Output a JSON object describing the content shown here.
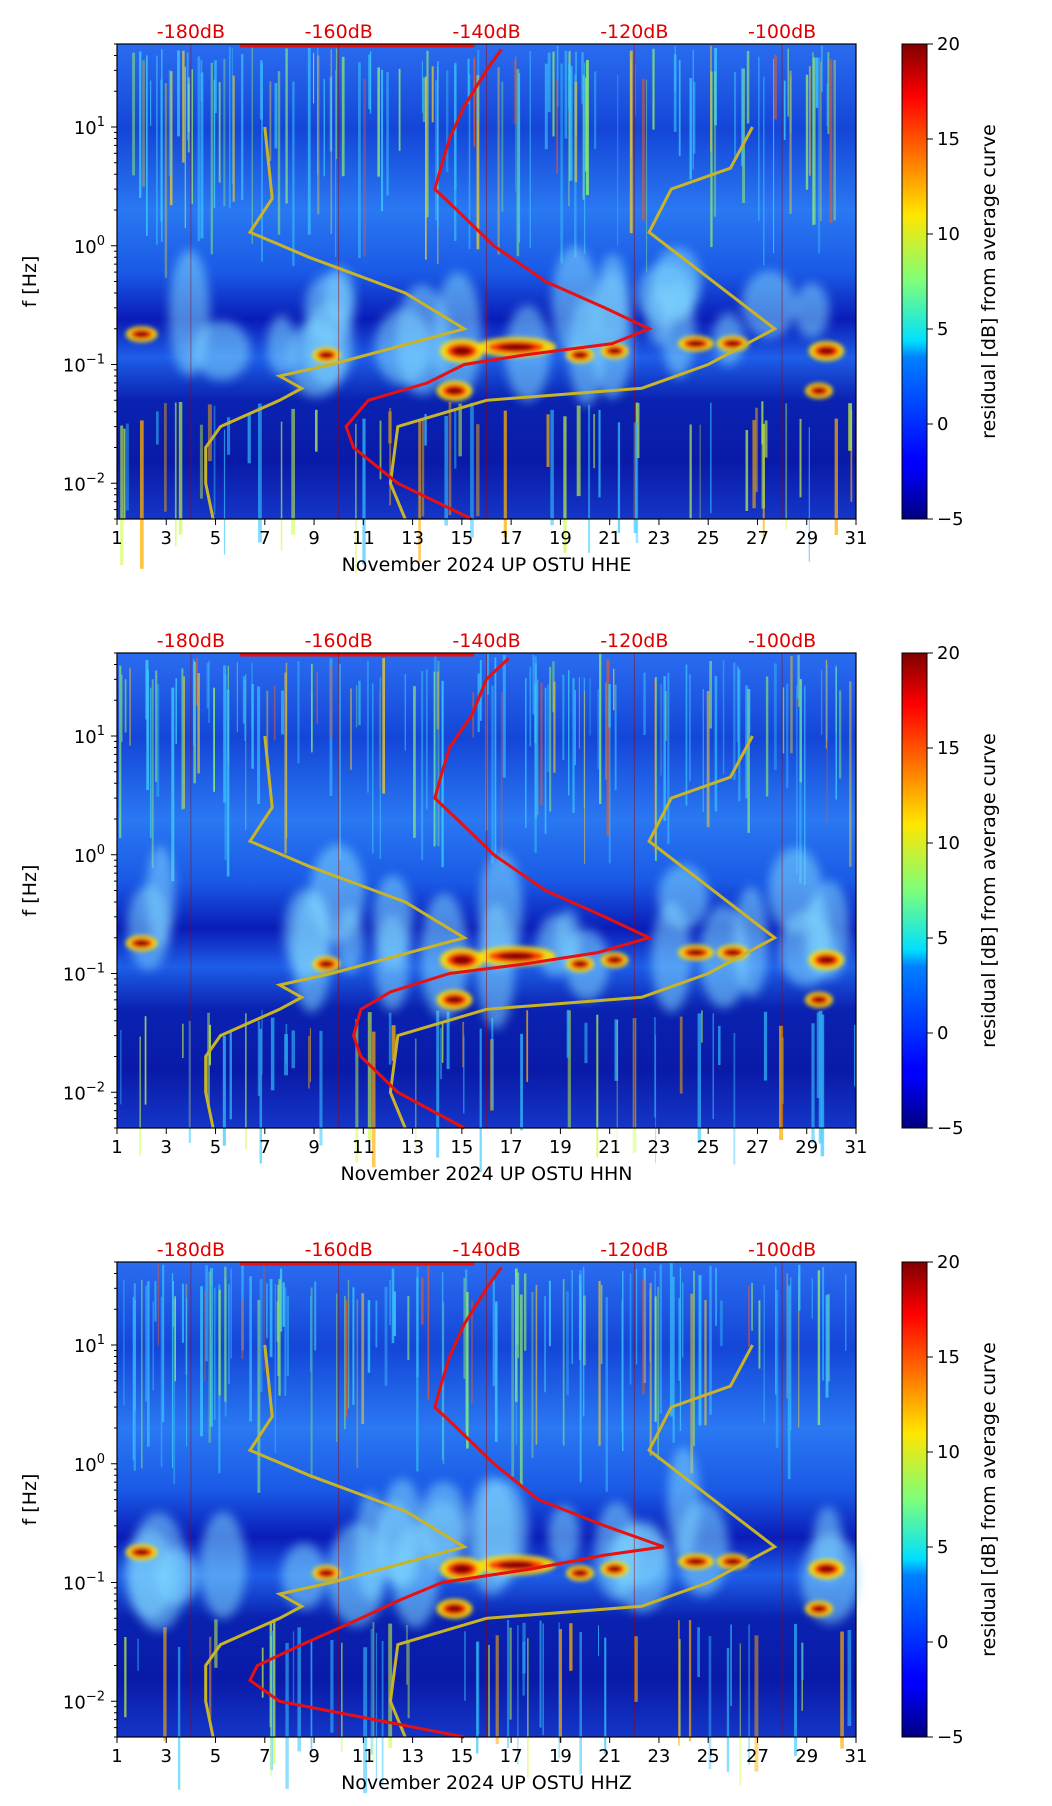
{
  "figure": {
    "colorbar": {
      "label": "residual [dB] from average curve",
      "ticks": [
        -5,
        0,
        5,
        10,
        15,
        20
      ],
      "range": [
        -5,
        20
      ],
      "colormap": "jet"
    },
    "shared": {
      "y_label": "f [Hz]",
      "y_ticks": [
        {
          "value": 0.01,
          "base": "10",
          "exp": "−2"
        },
        {
          "value": 0.1,
          "base": "10",
          "exp": "−1"
        },
        {
          "value": 1,
          "base": "10",
          "exp": "0"
        },
        {
          "value": 10,
          "base": "10",
          "exp": "1"
        }
      ],
      "y_range": [
        0.005,
        50
      ],
      "x_ticks": [
        "1",
        "3",
        "5",
        "7",
        "9",
        "11",
        "13",
        "15",
        "17",
        "19",
        "21",
        "23",
        "25",
        "27",
        "29",
        "31"
      ],
      "x_range": [
        1,
        31
      ],
      "db_labels": [
        "-180dB",
        "-160dB",
        "-140dB",
        "-120dB",
        "-100dB"
      ],
      "db_label_days": [
        4,
        10,
        16,
        22,
        28
      ],
      "colors": {
        "red_curve": "#e81010",
        "model_curve": "#c8b428",
        "db_label": "#e00000"
      }
    }
  },
  "chart_data": [
    {
      "type": "heatmap",
      "title": "",
      "xlabel": "November 2024 UP OSTU  HHE",
      "ylabel": "f [Hz]",
      "component": "HHE",
      "average_curve_db": [
        [
          0.005,
          -142
        ],
        [
          0.01,
          -152
        ],
        [
          0.02,
          -158
        ],
        [
          0.03,
          -159
        ],
        [
          0.05,
          -156
        ],
        [
          0.07,
          -148
        ],
        [
          0.1,
          -143
        ],
        [
          0.12,
          -135
        ],
        [
          0.15,
          -123
        ],
        [
          0.2,
          -118
        ],
        [
          0.3,
          -124
        ],
        [
          0.5,
          -132
        ],
        [
          1,
          -139
        ],
        [
          2,
          -144
        ],
        [
          3,
          -147
        ],
        [
          5,
          -146
        ],
        [
          8,
          -145
        ],
        [
          15,
          -143
        ],
        [
          30,
          -140
        ],
        [
          45,
          -138
        ]
      ]
    },
    {
      "type": "heatmap",
      "title": "",
      "xlabel": "November 2024 UP OSTU  HHN",
      "ylabel": "f [Hz]",
      "component": "HHN",
      "average_curve_db": [
        [
          0.005,
          -143
        ],
        [
          0.01,
          -152
        ],
        [
          0.02,
          -157
        ],
        [
          0.03,
          -158
        ],
        [
          0.05,
          -157
        ],
        [
          0.07,
          -153
        ],
        [
          0.1,
          -145
        ],
        [
          0.12,
          -135
        ],
        [
          0.15,
          -125
        ],
        [
          0.2,
          -118
        ],
        [
          0.3,
          -124
        ],
        [
          0.5,
          -132
        ],
        [
          1,
          -139
        ],
        [
          2,
          -144
        ],
        [
          3,
          -147
        ],
        [
          5,
          -146
        ],
        [
          8,
          -145
        ],
        [
          15,
          -142
        ],
        [
          30,
          -140
        ],
        [
          45,
          -137
        ]
      ]
    },
    {
      "type": "heatmap",
      "title": "",
      "xlabel": "November 2024 UP OSTU  HHZ",
      "ylabel": "f [Hz]",
      "component": "HHZ",
      "average_curve_db": [
        [
          0.005,
          -143
        ],
        [
          0.01,
          -168
        ],
        [
          0.015,
          -172
        ],
        [
          0.02,
          -171
        ],
        [
          0.03,
          -165
        ],
        [
          0.05,
          -157
        ],
        [
          0.07,
          -152
        ],
        [
          0.1,
          -146
        ],
        [
          0.13,
          -134
        ],
        [
          0.17,
          -124
        ],
        [
          0.2,
          -116
        ],
        [
          0.3,
          -124
        ],
        [
          0.5,
          -133
        ],
        [
          1,
          -139
        ],
        [
          2,
          -144
        ],
        [
          3,
          -147
        ],
        [
          5,
          -146
        ],
        [
          8,
          -145
        ],
        [
          15,
          -143
        ],
        [
          30,
          -140
        ],
        [
          45,
          -138
        ]
      ]
    }
  ],
  "noise_model": {
    "high": [
      [
        0.005,
        -151
      ],
      [
        0.01,
        -153
      ],
      [
        0.03,
        -152
      ],
      [
        0.05,
        -140
      ],
      [
        0.063,
        -119
      ],
      [
        0.1,
        -110
      ],
      [
        0.2,
        -101
      ],
      [
        1.3,
        -118
      ],
      [
        3,
        -115
      ],
      [
        4.5,
        -107
      ],
      [
        10,
        -104
      ]
    ],
    "low": [
      [
        0.005,
        -177
      ],
      [
        0.01,
        -178
      ],
      [
        0.02,
        -178
      ],
      [
        0.03,
        -176
      ],
      [
        0.05,
        -168
      ],
      [
        0.063,
        -165
      ],
      [
        0.08,
        -168
      ],
      [
        0.1,
        -161
      ],
      [
        0.2,
        -143
      ],
      [
        0.4,
        -151
      ],
      [
        0.8,
        -164
      ],
      [
        1.3,
        -172
      ],
      [
        2.5,
        -169
      ],
      [
        10,
        -170
      ]
    ]
  }
}
